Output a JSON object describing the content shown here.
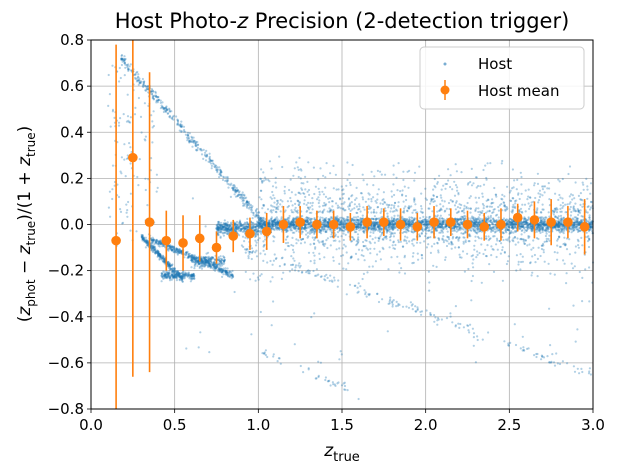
{
  "chart_data": {
    "type": "scatter",
    "title": "Host Photo-z Precision (2-detection trigger)",
    "xlabel": "z_true",
    "ylabel": "(z_phot − z_true)/(1 + z_true)",
    "xlim": [
      0.0,
      3.0
    ],
    "ylim": [
      -0.8,
      0.8
    ],
    "xticks": [
      "0.0",
      "0.5",
      "1.0",
      "1.5",
      "2.0",
      "2.5",
      "3.0"
    ],
    "yticks": [
      "0.8",
      "0.6",
      "0.4",
      "0.2",
      "0.0",
      "−0.2",
      "−0.4",
      "−0.6",
      "−0.8"
    ],
    "grid": true,
    "legend_position": "top-right",
    "series": [
      {
        "name": "Host",
        "kind": "scatter-points",
        "color": "#1f77b4",
        "approx_point_count": 6000,
        "description_points": [
          {
            "x": 0.15,
            "y": 0.4
          },
          {
            "x": 0.25,
            "y": 0.7
          },
          {
            "x": 0.5,
            "y": -0.22
          },
          {
            "x": 0.75,
            "y": -0.18
          },
          {
            "x": 1.5,
            "y": 0.0
          },
          {
            "x": 2.5,
            "y": 0.03
          }
        ]
      },
      {
        "name": "Host mean",
        "kind": "errorbar",
        "color": "#ff7f0e",
        "x": [
          0.15,
          0.25,
          0.35,
          0.45,
          0.55,
          0.65,
          0.75,
          0.85,
          0.95,
          1.05,
          1.15,
          1.25,
          1.35,
          1.45,
          1.55,
          1.65,
          1.75,
          1.85,
          1.95,
          2.05,
          2.15,
          2.25,
          2.35,
          2.45,
          2.55,
          2.65,
          2.75,
          2.85,
          2.95
        ],
        "y": [
          -0.07,
          0.29,
          0.01,
          -0.07,
          -0.08,
          -0.06,
          -0.1,
          -0.05,
          -0.04,
          -0.03,
          0.0,
          0.01,
          0.0,
          0.0,
          -0.01,
          0.01,
          0.01,
          0.0,
          -0.01,
          0.01,
          0.01,
          0.0,
          -0.01,
          0.0,
          0.03,
          0.02,
          0.01,
          0.01,
          -0.01
        ],
        "yerr": [
          0.85,
          0.95,
          0.65,
          0.13,
          0.12,
          0.1,
          0.07,
          0.07,
          0.07,
          0.08,
          0.08,
          0.07,
          0.06,
          0.06,
          0.06,
          0.07,
          0.06,
          0.07,
          0.06,
          0.07,
          0.06,
          0.06,
          0.06,
          0.07,
          0.06,
          0.08,
          0.1,
          0.07,
          0.12
        ]
      }
    ]
  },
  "legend": {
    "host_label": "Host",
    "mean_label": "Host mean"
  }
}
